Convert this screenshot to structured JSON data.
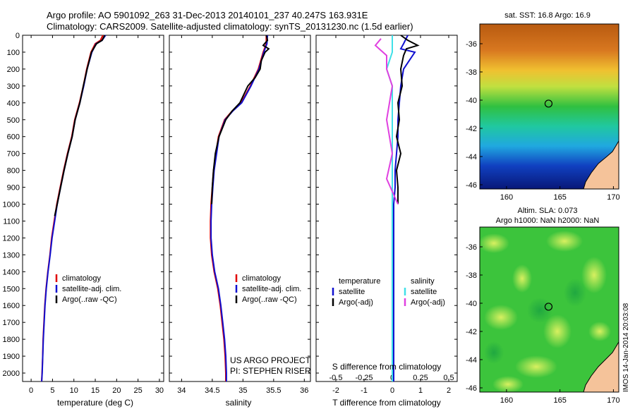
{
  "header": {
    "title_line1": "Argo profile: AO 5901092_263 31-Dec-2013 20140101_237 40.247S 163.931E",
    "title_line2": "Climatology: CARS2009. Satellite-adjusted climatology: synTS_20131230.nc (1.5d earlier)"
  },
  "colors": {
    "climatology": "#e00000",
    "satellite": "#1010d0",
    "argo": "#000000",
    "salinity_satellite": "#40e0e8",
    "salinity_argo": "#e040e0"
  },
  "chart_data": [
    {
      "id": "temperature",
      "type": "line",
      "xlabel": "temperature (deg C)",
      "ylabel": "",
      "xlim": [
        -2,
        31
      ],
      "ylim": [
        2050,
        0
      ],
      "xticks": [
        0,
        5,
        10,
        15,
        20,
        25,
        30
      ],
      "yticks": [
        0,
        100,
        200,
        300,
        400,
        500,
        600,
        700,
        800,
        900,
        1000,
        1100,
        1200,
        1300,
        1400,
        1500,
        1600,
        1700,
        1800,
        1900,
        2000
      ],
      "legend": [
        "climatology",
        "satellite-adj. clim.",
        "Argo(..raw -QC)"
      ],
      "series": [
        {
          "name": "climatology",
          "color": "#e00000",
          "x": [
            16.8,
            16.2,
            15.0,
            14.0,
            13.0,
            12.2,
            11.3,
            10.2,
            9.5,
            8.5,
            7.6,
            6.8,
            6.0,
            5.4,
            4.8,
            4.4,
            3.9,
            3.5,
            3.2,
            3.0,
            2.8,
            2.7,
            2.55,
            2.45
          ],
          "y": [
            0,
            30,
            50,
            100,
            200,
            300,
            400,
            500,
            600,
            700,
            800,
            900,
            1000,
            1100,
            1200,
            1300,
            1400,
            1500,
            1600,
            1700,
            1800,
            1900,
            2000,
            2050
          ]
        },
        {
          "name": "satellite-adj. clim.",
          "color": "#1010d0",
          "x": [
            17.4,
            16.6,
            15.2,
            14.2,
            13.1,
            12.3,
            11.4,
            10.3,
            9.6,
            8.6,
            7.7,
            6.9,
            6.1,
            5.5,
            4.9,
            4.45,
            3.95,
            3.55,
            3.25,
            3.05,
            2.85,
            2.72,
            2.58,
            2.47
          ],
          "y": [
            0,
            30,
            50,
            100,
            200,
            300,
            400,
            500,
            600,
            700,
            800,
            900,
            1000,
            1100,
            1200,
            1300,
            1400,
            1500,
            1600,
            1700,
            1800,
            1900,
            2000,
            2050
          ]
        },
        {
          "name": "Argo(..raw -QC)",
          "color": "#000000",
          "x": [
            17.2,
            16.6,
            15.3,
            14.1,
            13.1,
            12.2,
            11.4,
            10.3,
            9.6,
            8.6,
            7.7,
            6.9,
            6.1,
            5.5
          ],
          "y": [
            0,
            30,
            50,
            100,
            200,
            300,
            400,
            500,
            600,
            700,
            800,
            900,
            1000,
            1070
          ]
        }
      ]
    },
    {
      "id": "salinity",
      "type": "line",
      "xlabel": "salinity",
      "ylabel": "",
      "xlim": [
        33.8,
        36.1
      ],
      "ylim": [
        2050,
        0
      ],
      "xticks": [
        34,
        34.5,
        35,
        35.5,
        36
      ],
      "xtick_labels": [
        "34",
        "34.5",
        "35",
        "35.5",
        "36"
      ],
      "legend": [
        "climatology",
        "satellite-adj. clim.",
        "Argo(..raw -QC)"
      ],
      "annotations": [
        "US ARGO PROJECT",
        "PI: STEPHEN RISER"
      ],
      "series": [
        {
          "name": "climatology",
          "color": "#e00000",
          "x": [
            35.38,
            35.38,
            35.33,
            35.25,
            35.12,
            34.97,
            34.82,
            34.7,
            34.6,
            34.56,
            34.52,
            34.5,
            34.48,
            34.47,
            34.47,
            34.49,
            34.53,
            34.59,
            34.63,
            34.66,
            34.69,
            34.71,
            34.72,
            34.72
          ],
          "y": [
            0,
            50,
            100,
            200,
            300,
            400,
            450,
            500,
            600,
            700,
            800,
            900,
            1000,
            1100,
            1200,
            1300,
            1400,
            1500,
            1600,
            1700,
            1800,
            1900,
            2000,
            2050
          ]
        },
        {
          "name": "satellite-adj. clim.",
          "color": "#1010d0",
          "x": [
            35.4,
            35.39,
            35.34,
            35.26,
            35.13,
            34.98,
            34.83,
            34.71,
            34.61,
            34.57,
            34.53,
            34.51,
            34.49,
            34.48,
            34.48,
            34.5,
            34.54,
            34.6,
            34.64,
            34.67,
            34.7,
            34.72,
            34.73,
            34.73
          ],
          "y": [
            0,
            50,
            100,
            200,
            300,
            400,
            450,
            500,
            600,
            700,
            800,
            900,
            1000,
            1100,
            1200,
            1300,
            1400,
            1500,
            1600,
            1700,
            1800,
            1900,
            2000,
            2050
          ]
        },
        {
          "name": "Argo(..raw -QC)",
          "color": "#000000",
          "x": [
            35.38,
            35.4,
            35.33,
            35.42,
            35.36,
            35.3,
            35.28,
            35.2,
            35.08,
            34.95,
            34.82,
            34.72,
            34.61,
            34.55,
            34.52,
            34.5,
            34.49
          ],
          "y": [
            0,
            30,
            60,
            80,
            100,
            150,
            200,
            250,
            300,
            400,
            450,
            500,
            600,
            700,
            800,
            900,
            1000
          ]
        }
      ]
    },
    {
      "id": "difference",
      "type": "line",
      "xlabel": "T difference from climatology",
      "top_xlabel": "S difference from climatology",
      "xlim": [
        -2.7,
        2.3
      ],
      "ylim": [
        2050,
        0
      ],
      "xticks": [
        -2,
        -1,
        0,
        1,
        2
      ],
      "top_xticks": [
        -0.5,
        -0.25,
        0,
        0.25,
        0.5
      ],
      "top_xtick_labels": [
        "-0.5",
        "-0.25",
        "0",
        "0.25",
        "0.5"
      ],
      "legend_temperature_title": "temperature",
      "legend_salinity_title": "salinity",
      "legend": [
        "satellite",
        "Argo(-adj)",
        "satellite",
        "Argo(-adj)"
      ],
      "series": [
        {
          "name": "satellite",
          "group": "temperature",
          "color": "#1010d0",
          "x": [
            0.55,
            0.4,
            0.3,
            0.8,
            0.6,
            0.4,
            0.3,
            0.25,
            0.2,
            0.2,
            0.15,
            0.1,
            0.1,
            0.05,
            0.05,
            0.05,
            0.05,
            0.05,
            0.05,
            0.05,
            0.05
          ],
          "y": [
            0,
            50,
            80,
            100,
            150,
            200,
            300,
            400,
            500,
            600,
            700,
            800,
            900,
            1000,
            1200,
            1400,
            1600,
            1800,
            1900,
            2000,
            2050
          ]
        },
        {
          "name": "Argo(-adj)",
          "group": "temperature",
          "color": "#000000",
          "x": [
            0.3,
            0.55,
            0.9,
            0.5,
            0.4,
            0.3,
            0.35,
            0.2,
            0.25,
            0.15,
            0.3,
            0.15,
            0.2,
            0.2
          ],
          "y": [
            0,
            30,
            60,
            80,
            120,
            200,
            300,
            400,
            500,
            600,
            700,
            800,
            900,
            1000
          ]
        },
        {
          "name": "satellite",
          "group": "salinity",
          "color": "#40e0e8",
          "x": [
            0.0,
            0.0,
            -0.05,
            0.0,
            0.0,
            0.0,
            0.0,
            0.0,
            0.0,
            0.0,
            0.0,
            0.0,
            0.0,
            0.0,
            0.0
          ],
          "y": [
            0,
            100,
            200,
            300,
            400,
            600,
            800,
            1000,
            1200,
            1400,
            1600,
            1800,
            1900,
            2000,
            2050
          ]
        },
        {
          "name": "Argo(-adj)",
          "group": "salinity",
          "color": "#e040e0",
          "x": [
            -0.1,
            -0.15,
            -0.05,
            -0.05,
            0.0,
            -0.05,
            0.0,
            -0.05,
            0.05
          ],
          "y": [
            20,
            60,
            120,
            200,
            300,
            500,
            700,
            850,
            1000
          ]
        }
      ]
    }
  ],
  "maps": {
    "sst": {
      "title": "sat. SST: 16.8 Argo: 16.9",
      "xlim": [
        157.5,
        170.5
      ],
      "ylim": [
        -46.3,
        -34.6
      ],
      "xticks": [
        160,
        165,
        170
      ],
      "yticks": [
        -36,
        -38,
        -40,
        -42,
        -44,
        -46
      ],
      "marker": [
        163.931,
        -40.247
      ]
    },
    "sla": {
      "title_line1": "Altim. SLA: 0.073",
      "title_line2": "Argo h1000: NaN h2000: NaN",
      "xlim": [
        157.5,
        170.5
      ],
      "ylim": [
        -46.3,
        -34.6
      ],
      "xticks": [
        160,
        165,
        170
      ],
      "yticks": [
        -36,
        -38,
        -40,
        -42,
        -44,
        -46
      ],
      "marker": [
        163.931,
        -40.247
      ]
    }
  },
  "stamp": "IMOS 14-Jan-2014 20:03:08"
}
